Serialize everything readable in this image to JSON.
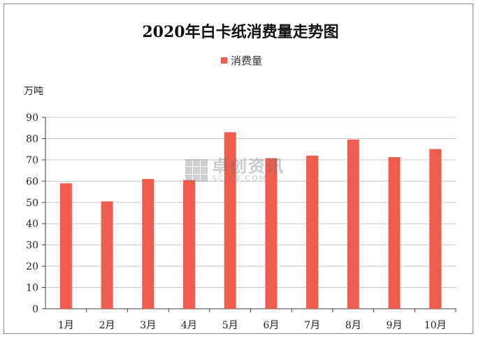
{
  "chart_data": {
    "type": "bar",
    "title": "2020年白卡纸消费量走势图",
    "ylabel": "万吨",
    "xlabel": "",
    "categories": [
      "1月",
      "2月",
      "3月",
      "4月",
      "5月",
      "6月",
      "7月",
      "8月",
      "9月",
      "10月"
    ],
    "series": [
      {
        "name": "消费量",
        "values": [
          59,
          50.5,
          61,
          60.5,
          83,
          70.8,
          72,
          79.6,
          71.3,
          75.1
        ]
      }
    ],
    "ylim": [
      0,
      90
    ],
    "yticks": [
      0,
      10,
      20,
      30,
      40,
      50,
      60,
      70,
      80,
      90
    ],
    "grid": true,
    "legend_position": "top-center",
    "colors": {
      "bar": "#f05c4e",
      "grid": "#c8c8c8",
      "axis": "#404040"
    }
  },
  "watermark": {
    "text_cn": "卓创资讯",
    "text_en": "SCI99.COM"
  }
}
